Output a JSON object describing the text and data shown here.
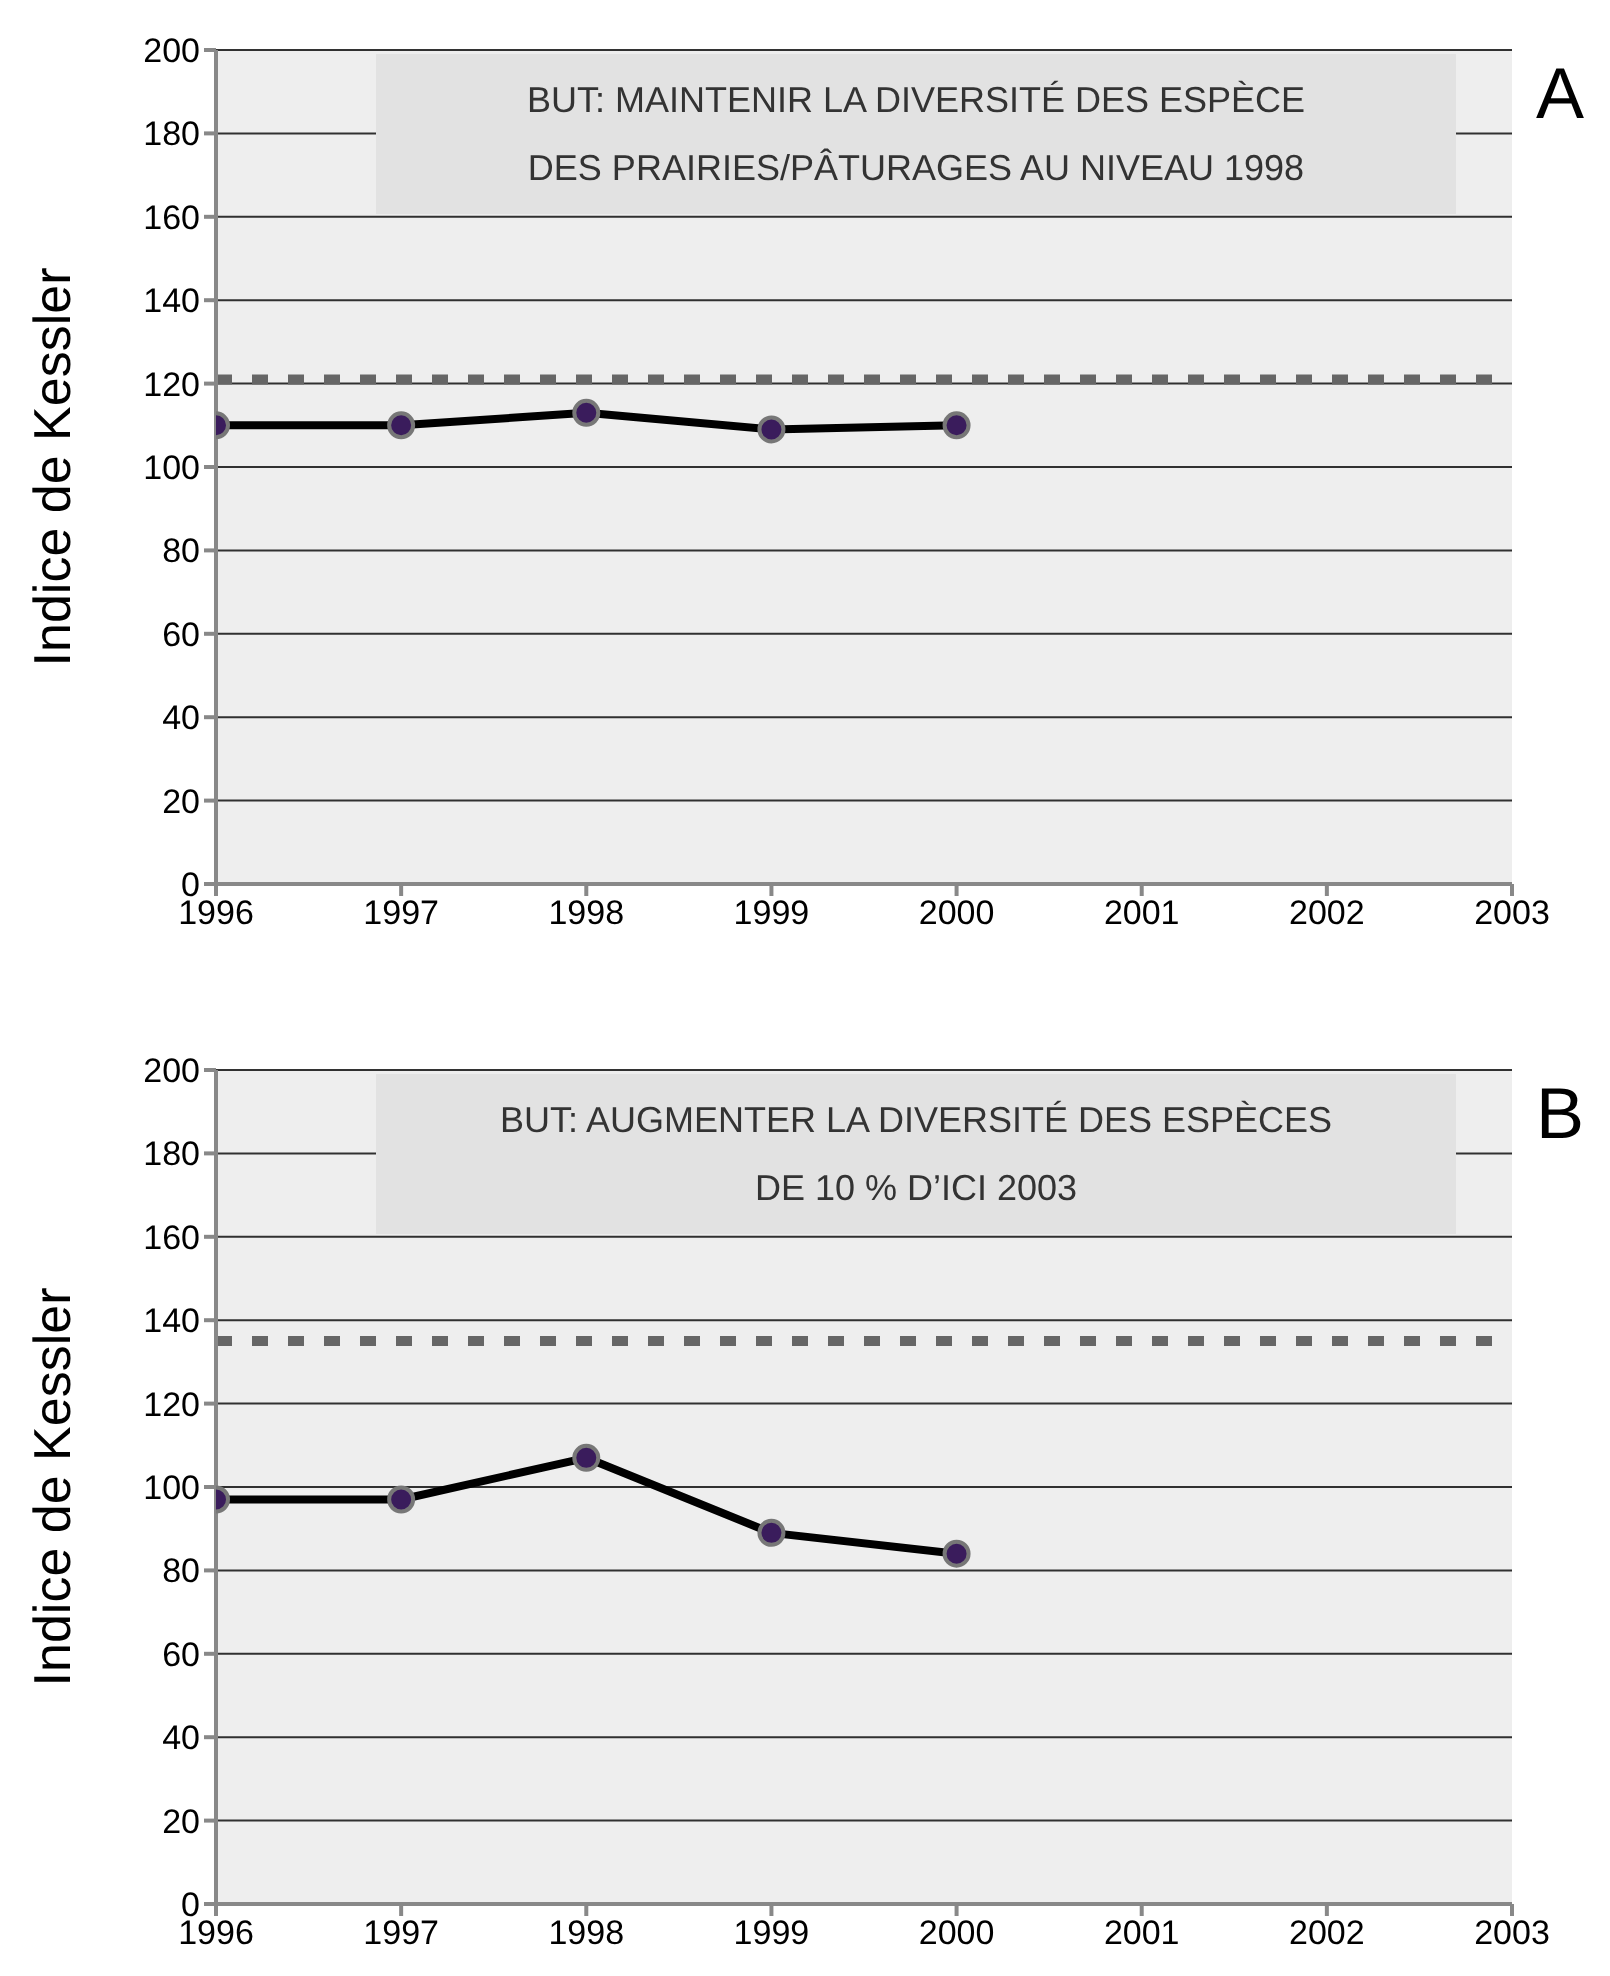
{
  "chart_data": [
    {
      "type": "line",
      "ylabel": "Indice de Kessler",
      "annotations": [
        "BUT: MAINTENIR LA DIVERSITÉ DES ESPÈCE\nDES PRAIRIES/PÂTURAGES AU NIVEAU 1998",
        "A"
      ],
      "x": [
        1996,
        1997,
        1998,
        1999,
        2000
      ],
      "series": [
        {
          "color": "#000000",
          "values": [
            110,
            110,
            113,
            109,
            110
          ]
        }
      ],
      "xlim": [
        1996,
        2003
      ],
      "xticks": [
        1996,
        1997,
        1998,
        1999,
        2000,
        2001,
        2002,
        2003
      ],
      "ylim": [
        0,
        200
      ],
      "yticks": [
        0,
        20,
        40,
        60,
        80,
        100,
        120,
        140,
        160,
        180,
        200
      ],
      "ref_lines": [
        {
          "axis": "y",
          "value": 121,
          "color": "#666666",
          "line_style": "dashed"
        }
      ],
      "grid": "y",
      "marker": "circle",
      "line_style": "solid",
      "legend": false
    },
    {
      "type": "line",
      "ylabel": "Indice de Kessler",
      "annotations": [
        "BUT: AUGMENTER LA DIVERSITÉ DES ESPÈCES\nDE 10 % D’ICI 2003",
        "B"
      ],
      "x": [
        1996,
        1997,
        1998,
        1999,
        2000
      ],
      "series": [
        {
          "color": "#000000",
          "values": [
            97,
            97,
            107,
            89,
            84
          ]
        }
      ],
      "xlim": [
        1996,
        2003
      ],
      "xticks": [
        1996,
        1997,
        1998,
        1999,
        2000,
        2001,
        2002,
        2003
      ],
      "ylim": [
        0,
        200
      ],
      "yticks": [
        0,
        20,
        40,
        60,
        80,
        100,
        120,
        140,
        160,
        180,
        200
      ],
      "ref_lines": [
        {
          "axis": "y",
          "value": 135,
          "color": "#666666",
          "line_style": "dashed"
        }
      ],
      "grid": "y",
      "marker": "circle",
      "line_style": "solid",
      "legend": false
    }
  ]
}
